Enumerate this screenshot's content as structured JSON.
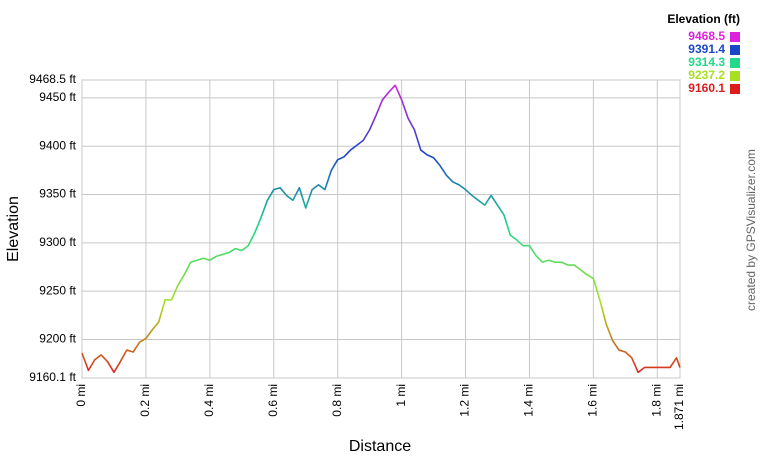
{
  "chart_data": {
    "type": "line",
    "x_label": "Distance",
    "y_label": "Elevation",
    "legend_title": "Elevation (ft)",
    "credit": "created by GPSVisualizer.com",
    "grid": true,
    "color_scale": [
      {
        "value": 9468.5,
        "color": "#dd22dd"
      },
      {
        "value": 9391.4,
        "color": "#1848c8"
      },
      {
        "value": 9314.3,
        "color": "#22d88a"
      },
      {
        "value": 9237.2,
        "color": "#a8e020"
      },
      {
        "value": 9160.1,
        "color": "#dd1c1c"
      }
    ],
    "xlim": [
      0,
      1.871
    ],
    "xticks": [
      {
        "value": 0,
        "label": "0 mi"
      },
      {
        "value": 0.2,
        "label": "0.2 mi"
      },
      {
        "value": 0.4,
        "label": "0.4 mi"
      },
      {
        "value": 0.6,
        "label": "0.6 mi"
      },
      {
        "value": 0.8,
        "label": "0.8 mi"
      },
      {
        "value": 1,
        "label": "1 mi"
      },
      {
        "value": 1.2,
        "label": "1.2 mi"
      },
      {
        "value": 1.4,
        "label": "1.4 mi"
      },
      {
        "value": 1.6,
        "label": "1.6 mi"
      },
      {
        "value": 1.8,
        "label": "1.8 mi"
      },
      {
        "value": 1.871,
        "label": "1.871 mi"
      }
    ],
    "ylim": [
      9160.1,
      9468.5
    ],
    "yticks": [
      {
        "value": 9160.1,
        "label": "9160.1 ft"
      },
      {
        "value": 9200,
        "label": "9200 ft"
      },
      {
        "value": 9250,
        "label": "9250 ft"
      },
      {
        "value": 9300,
        "label": "9300 ft"
      },
      {
        "value": 9350,
        "label": "9350 ft"
      },
      {
        "value": 9400,
        "label": "9400 ft"
      },
      {
        "value": 9450,
        "label": "9450 ft"
      },
      {
        "value": 9468.5,
        "label": "9468.5 ft"
      }
    ],
    "x": [
      0,
      0.02,
      0.04,
      0.06,
      0.08,
      0.1,
      0.12,
      0.14,
      0.16,
      0.18,
      0.2,
      0.22,
      0.24,
      0.26,
      0.28,
      0.3,
      0.32,
      0.34,
      0.36,
      0.38,
      0.4,
      0.42,
      0.44,
      0.46,
      0.48,
      0.5,
      0.52,
      0.54,
      0.56,
      0.58,
      0.6,
      0.62,
      0.64,
      0.66,
      0.68,
      0.7,
      0.72,
      0.74,
      0.76,
      0.78,
      0.8,
      0.82,
      0.84,
      0.86,
      0.88,
      0.9,
      0.92,
      0.94,
      0.96,
      0.98,
      1.0,
      1.02,
      1.04,
      1.06,
      1.08,
      1.1,
      1.12,
      1.14,
      1.16,
      1.18,
      1.2,
      1.22,
      1.24,
      1.26,
      1.28,
      1.3,
      1.32,
      1.34,
      1.36,
      1.38,
      1.4,
      1.42,
      1.44,
      1.46,
      1.48,
      1.5,
      1.52,
      1.54,
      1.56,
      1.58,
      1.6,
      1.62,
      1.64,
      1.66,
      1.68,
      1.7,
      1.72,
      1.74,
      1.76,
      1.78,
      1.8,
      1.82,
      1.84,
      1.86,
      1.871
    ],
    "values": [
      9186,
      9168,
      9179,
      9184,
      9177,
      9166,
      9177,
      9189,
      9187,
      9197,
      9201,
      9210,
      9218,
      9241,
      9241,
      9256,
      9267,
      9280,
      9282,
      9284,
      9282,
      9286,
      9288,
      9290,
      9294,
      9292,
      9297,
      9310,
      9326,
      9344,
      9355,
      9357,
      9349,
      9344,
      9357,
      9336,
      9355,
      9360,
      9355,
      9375,
      9386,
      9389,
      9396,
      9401,
      9406,
      9417,
      9432,
      9448,
      9456,
      9463,
      9448,
      9429,
      9417,
      9396,
      9391,
      9388,
      9380,
      9370,
      9363,
      9360,
      9355,
      9349,
      9344,
      9339,
      9349,
      9339,
      9329,
      9308,
      9303,
      9297,
      9297,
      9287,
      9280,
      9282,
      9280,
      9280,
      9277,
      9277,
      9272,
      9267,
      9263,
      9241,
      9216,
      9199,
      9189,
      9187,
      9181,
      9166,
      9171,
      9171,
      9171,
      9171,
      9171,
      9181,
      9171
    ]
  }
}
